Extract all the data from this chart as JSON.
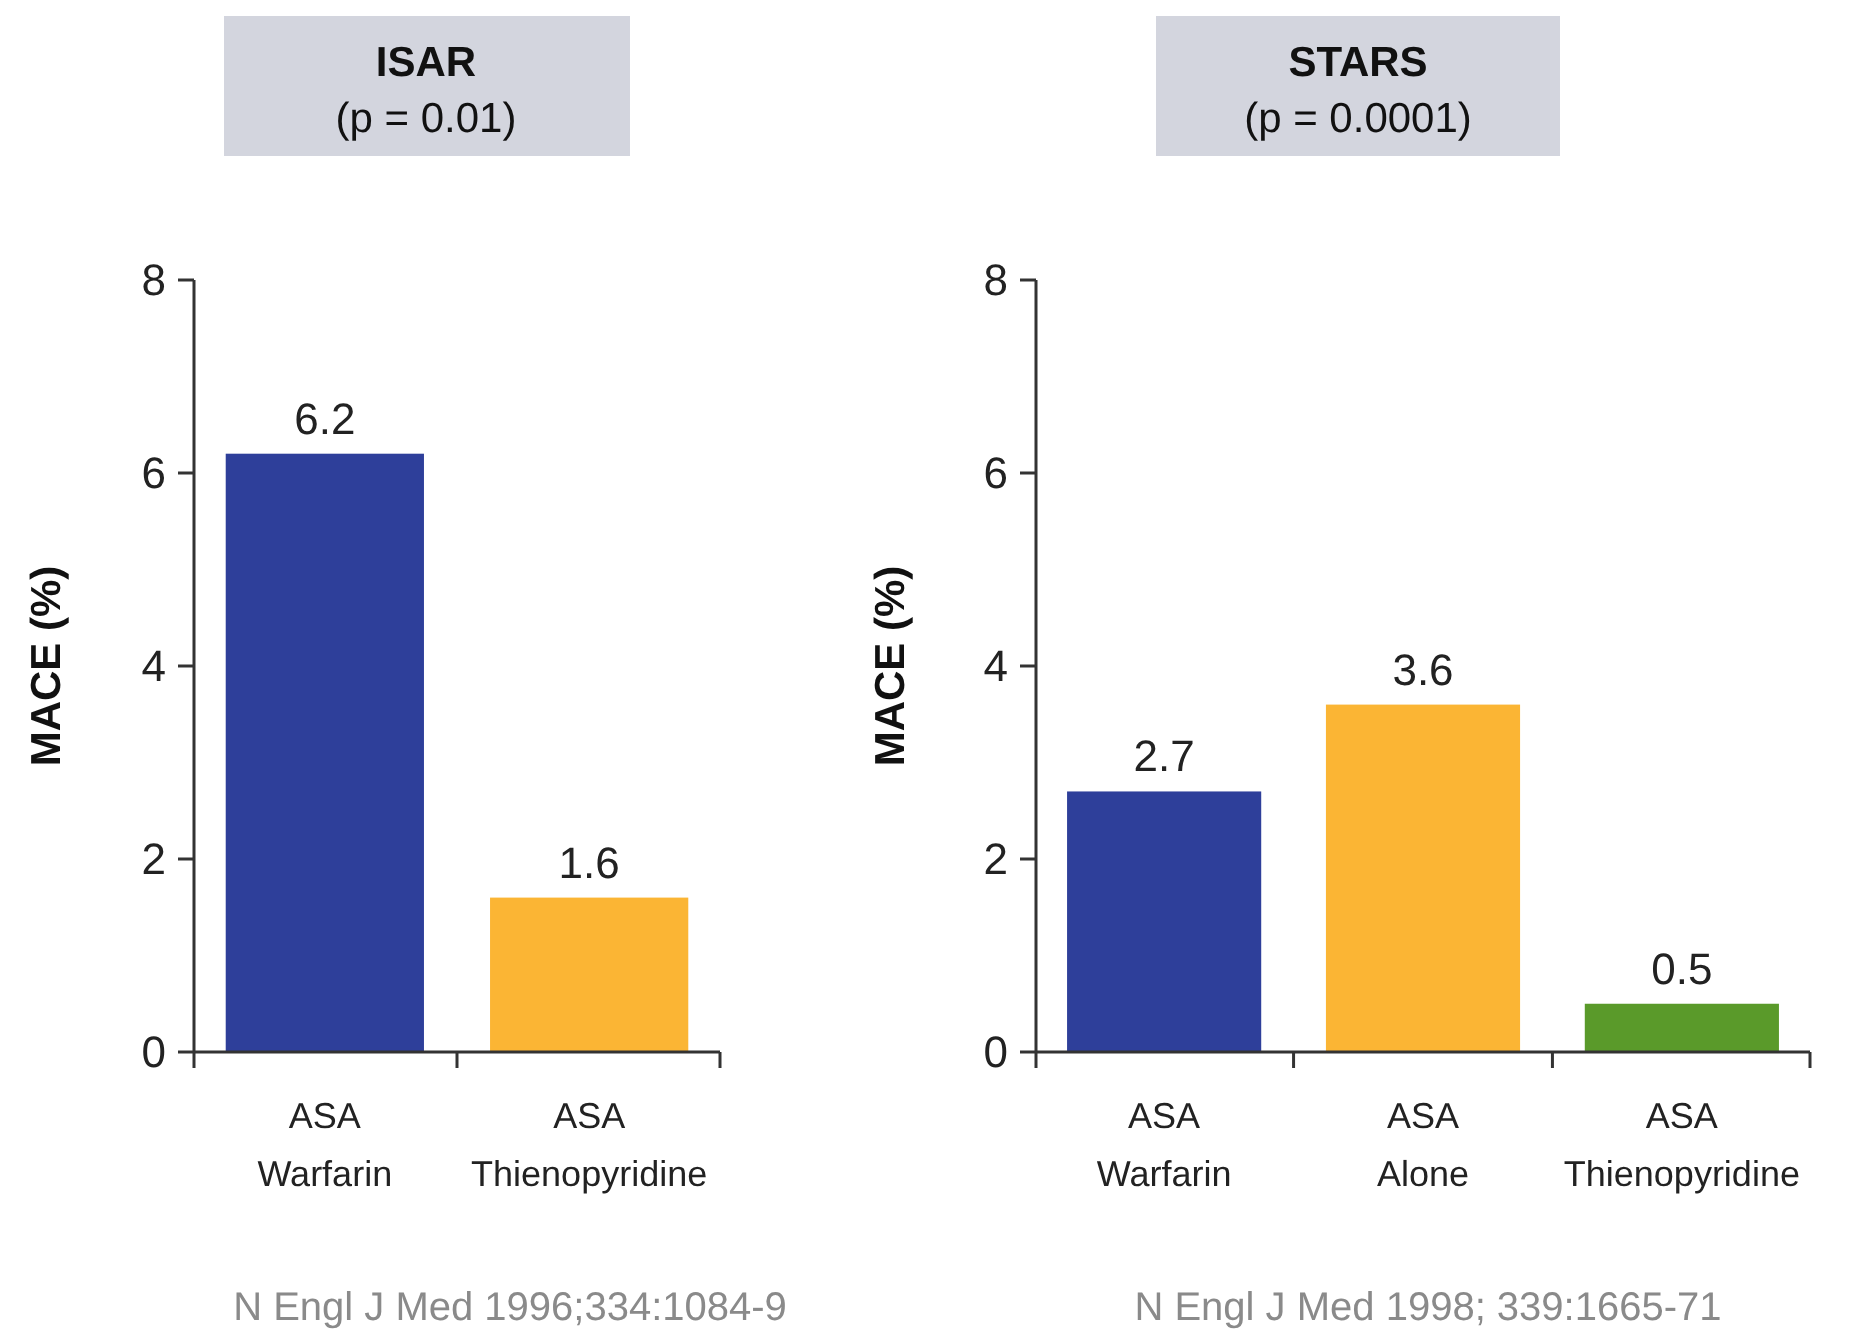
{
  "chart_data": [
    {
      "type": "bar",
      "title": "ISAR",
      "subtitle": "(p = 0.01)",
      "ylabel": "MACE (%)",
      "categories": [
        "ASA\nWarfarin",
        "ASA\nThienopyridine"
      ],
      "values": [
        6.2,
        1.6
      ],
      "colors": [
        "#2e3f9a",
        "#fbb534"
      ],
      "ylim": [
        0,
        8
      ],
      "yticks": [
        0,
        2,
        4,
        6,
        8
      ],
      "data_labels": true,
      "grid": false,
      "annotations": [
        "N Engl J Med 1996;334:1084-9"
      ]
    },
    {
      "type": "bar",
      "title": "STARS",
      "subtitle": "(p = 0.0001)",
      "ylabel": "MACE (%)",
      "categories": [
        "ASA\nWarfarin",
        "ASA\nAlone",
        "ASA\nThienopyridine"
      ],
      "values": [
        2.7,
        3.6,
        0.5
      ],
      "colors": [
        "#2e3f9a",
        "#fbb534",
        "#5a9a2a"
      ],
      "ylim": [
        0,
        8
      ],
      "yticks": [
        0,
        2,
        4,
        6,
        8
      ],
      "data_labels": true,
      "grid": false,
      "annotations": [
        "N Engl J Med 1998; 339:1665-71"
      ]
    }
  ]
}
